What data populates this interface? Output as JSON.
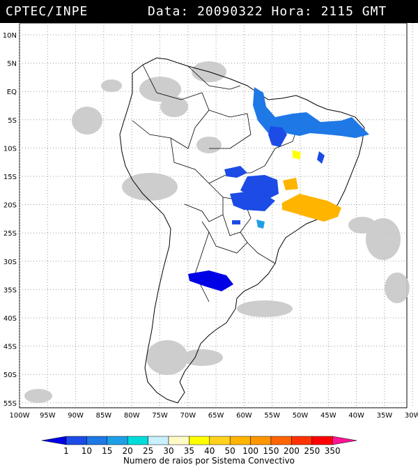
{
  "header": {
    "source": "CPTEC/INPE",
    "datetime": "Data: 20090322 Hora: 2115 GMT"
  },
  "map": {
    "lat_labels": [
      "10N",
      "5N",
      "EQ",
      "5S",
      "10S",
      "15S",
      "20S",
      "25S",
      "30S",
      "35S",
      "40S",
      "45S",
      "50S",
      "55S"
    ],
    "lon_labels": [
      "100W",
      "95W",
      "90W",
      "85W",
      "80W",
      "75W",
      "70W",
      "65W",
      "60W",
      "55W",
      "50W",
      "45W",
      "40W",
      "35W",
      "30W"
    ]
  },
  "colorbar": {
    "ticks": [
      "1",
      "10",
      "15",
      "20",
      "25",
      "30",
      "35",
      "40",
      "50",
      "100",
      "150",
      "200",
      "250",
      "350"
    ],
    "colors": [
      "#0000e6",
      "#1c4be6",
      "#1e78e6",
      "#1ea0e6",
      "#00dcdc",
      "#c8f0ff",
      "#fffac8",
      "#ffff00",
      "#ffd21e",
      "#ffb400",
      "#ff9600",
      "#ff6400",
      "#ff3200",
      "#ff0000",
      "#ff1493"
    ],
    "title": "Numero de raios por Sistema Convectivo"
  }
}
